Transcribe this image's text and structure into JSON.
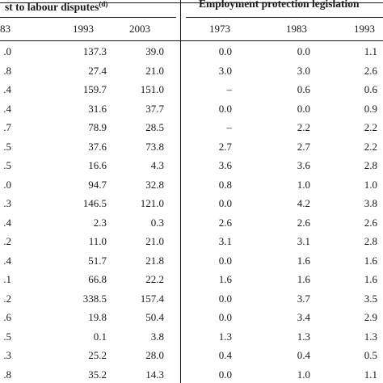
{
  "group_headers": {
    "labour_disputes": "st to labour disputes",
    "labour_disputes_note": "(d)",
    "epl": "Employment protection legislation"
  },
  "column_headers": {
    "c0": "83",
    "c1": "1993",
    "c2": "2003",
    "c3": "1973",
    "c4": "1983",
    "c5": "1993"
  },
  "rows": [
    [
      ".0",
      "137.3",
      "39.0",
      "0.0",
      "0.0",
      "1.1"
    ],
    [
      ".8",
      "27.4",
      "21.0",
      "3.0",
      "3.0",
      "2.6"
    ],
    [
      ".4",
      "159.7",
      "151.0",
      "–",
      "0.6",
      "0.6"
    ],
    [
      ".4",
      "31.6",
      "37.7",
      "0.0",
      "0.0",
      "0.9"
    ],
    [
      ".7",
      "78.9",
      "28.5",
      "–",
      "2.2",
      "2.2"
    ],
    [
      ".5",
      "37.6",
      "73.8",
      "2.7",
      "2.7",
      "2.2"
    ],
    [
      ".5",
      "16.6",
      "4.3",
      "3.6",
      "3.6",
      "2.8"
    ],
    [
      ".0",
      "94.7",
      "32.8",
      "0.8",
      "1.0",
      "1.0"
    ],
    [
      ".3",
      "146.5",
      "121.0",
      "0.0",
      "4.2",
      "3.8"
    ],
    [
      ".4",
      "2.3",
      "0.3",
      "2.6",
      "2.6",
      "2.6"
    ],
    [
      ".2",
      "11.0",
      "21.0",
      "3.1",
      "3.1",
      "2.8"
    ],
    [
      ".4",
      "51.7",
      "21.8",
      "0.0",
      "1.6",
      "1.6"
    ],
    [
      ".1",
      "66.8",
      "22.2",
      "1.6",
      "1.6",
      "1.6"
    ],
    [
      ".2",
      "338.5",
      "157.4",
      "0.0",
      "3.7",
      "3.5"
    ],
    [
      ".6",
      "19.8",
      "50.4",
      "0.0",
      "3.4",
      "2.9"
    ],
    [
      ".5",
      "0.1",
      "3.8",
      "1.3",
      "1.3",
      "1.3"
    ],
    [
      ".3",
      "25.2",
      "28.0",
      "0.4",
      "0.4",
      "0.5"
    ],
    [
      ".8",
      "35.2",
      "14.3",
      "0.0",
      "1.0",
      "1.1"
    ]
  ]
}
